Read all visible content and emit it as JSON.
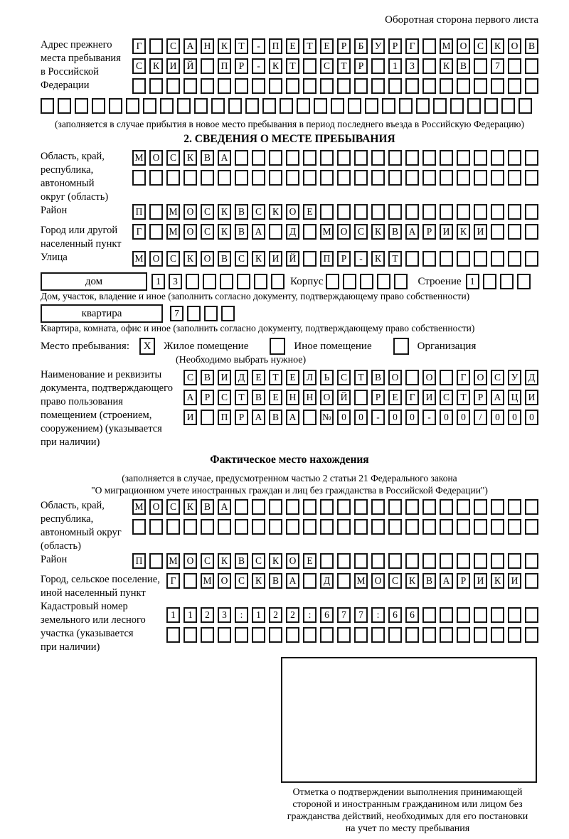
{
  "header": {
    "title": "Оборотная сторона первого листа"
  },
  "prev_address": {
    "label_lines": [
      "Адрес прежнего",
      "места пребывания",
      "в Российской",
      "Федерации"
    ],
    "rows": [
      {
        "cells": "Г САНКТ-ПЕТЕРБУРГ МОСКОВ",
        "count": 24
      },
      {
        "cells": "СКИЙ ПР-КТ СТР 13 КВ 7",
        "count": 24
      },
      {
        "cells": "",
        "count": 24
      },
      {
        "cells": "",
        "count": 29
      }
    ],
    "note": "(заполняется в случае прибытия в новое место пребывания в период последнего въезда в Российскую Федерацию)"
  },
  "section2": {
    "title": "2. СВЕДЕНИЯ О МЕСТЕ ПРЕБЫВАНИЯ",
    "region": {
      "label_lines": [
        "Область, край,",
        "республика,",
        "автономный",
        "округ (область)"
      ],
      "rows": [
        {
          "cells": "МОСКВА",
          "count": 24
        },
        {
          "cells": "",
          "count": 24
        }
      ]
    },
    "district": {
      "label": "Район",
      "row": {
        "cells": "П МОСКВСКОЕ",
        "count": 24
      }
    },
    "city": {
      "label_lines": [
        "Город или другой",
        "населенный пункт"
      ],
      "row": {
        "cells": "Г МОСКВА Д МОСКВАРИКИ",
        "count": 24
      }
    },
    "street": {
      "label": "Улица",
      "row": {
        "cells": "МОСКОВСКИЙ ПР-КТ",
        "count": 24
      }
    },
    "house": {
      "house_label": "дом",
      "house_cells": {
        "cells": "13",
        "count": 8
      },
      "korpus_label": "Корпус",
      "korpus_cells": {
        "cells": "",
        "count": 5
      },
      "stroenie_label": "Строение",
      "stroenie_cells": {
        "cells": "1",
        "count": 4
      }
    },
    "house_note": "Дом, участок, владение и иное (заполнить согласно документу, подтверждающему право собственности)",
    "apartment": {
      "label": "квартира",
      "cells": {
        "cells": "7",
        "count": 4
      }
    },
    "apartment_note": "Квартира, комната, офис и иное (заполнить согласно документу, подтверждающему право собственности)",
    "stay_type": {
      "label": "Место пребывания:",
      "options": [
        {
          "label": "Жилое помещение",
          "mark": "X"
        },
        {
          "label": "Иное помещение",
          "mark": ""
        },
        {
          "label": "Организация",
          "mark": ""
        }
      ],
      "note": "(Необходимо выбрать нужное)"
    },
    "doc": {
      "label_lines": [
        "Наименование и реквизиты",
        "документа, подтверждающего",
        "право пользования",
        "помещением (строением,",
        "сооружением) (указывается",
        "при наличии)"
      ],
      "rows": [
        {
          "cells": "СВИДЕТЕЛЬСТВО О ГОСУД",
          "count": 21
        },
        {
          "cells": "АРСТВЕННОЙ РЕГИСТРАЦИ",
          "count": 21
        },
        {
          "cells": "И ПРАВА №00-00-00/000",
          "count": 21
        }
      ]
    }
  },
  "fact": {
    "title": "Фактическое место нахождения",
    "note_lines": [
      "(заполняется в случае, предусмотренном частью 2 статьи 21 Федерального закона",
      "\"О миграционном учете иностранных граждан и лиц без гражданства в Российской Федерации\")"
    ],
    "region": {
      "label_lines": [
        "Область, край,",
        "республика,",
        "автономный округ",
        "(область)"
      ],
      "rows": [
        {
          "cells": "МОСКВА",
          "count": 24
        },
        {
          "cells": "",
          "count": 24
        }
      ]
    },
    "district": {
      "label": "Район",
      "row": {
        "cells": "П МОСКВСКОЕ",
        "count": 24
      }
    },
    "city": {
      "label_lines": [
        "Город, сельское поселение,",
        "иной населенный пункт"
      ],
      "row": {
        "cells": "Г МОСКВА Д МОСКВАРИКИ",
        "count": 22
      }
    },
    "cadastre": {
      "label_lines": [
        "Кадастровый номер",
        "земельного или лесного",
        "участка (указывается",
        "при наличии)"
      ],
      "rows": [
        {
          "cells": "1123:122:677:66",
          "count": 22
        },
        {
          "cells": "",
          "count": 22
        }
      ]
    },
    "stamp_caption_lines": [
      "Отметка о подтверждении выполнения принимающей",
      "стороной и иностранным гражданином или лицом без",
      "гражданства действий, необходимых для его постановки",
      "на учет по месту пребывания"
    ]
  }
}
